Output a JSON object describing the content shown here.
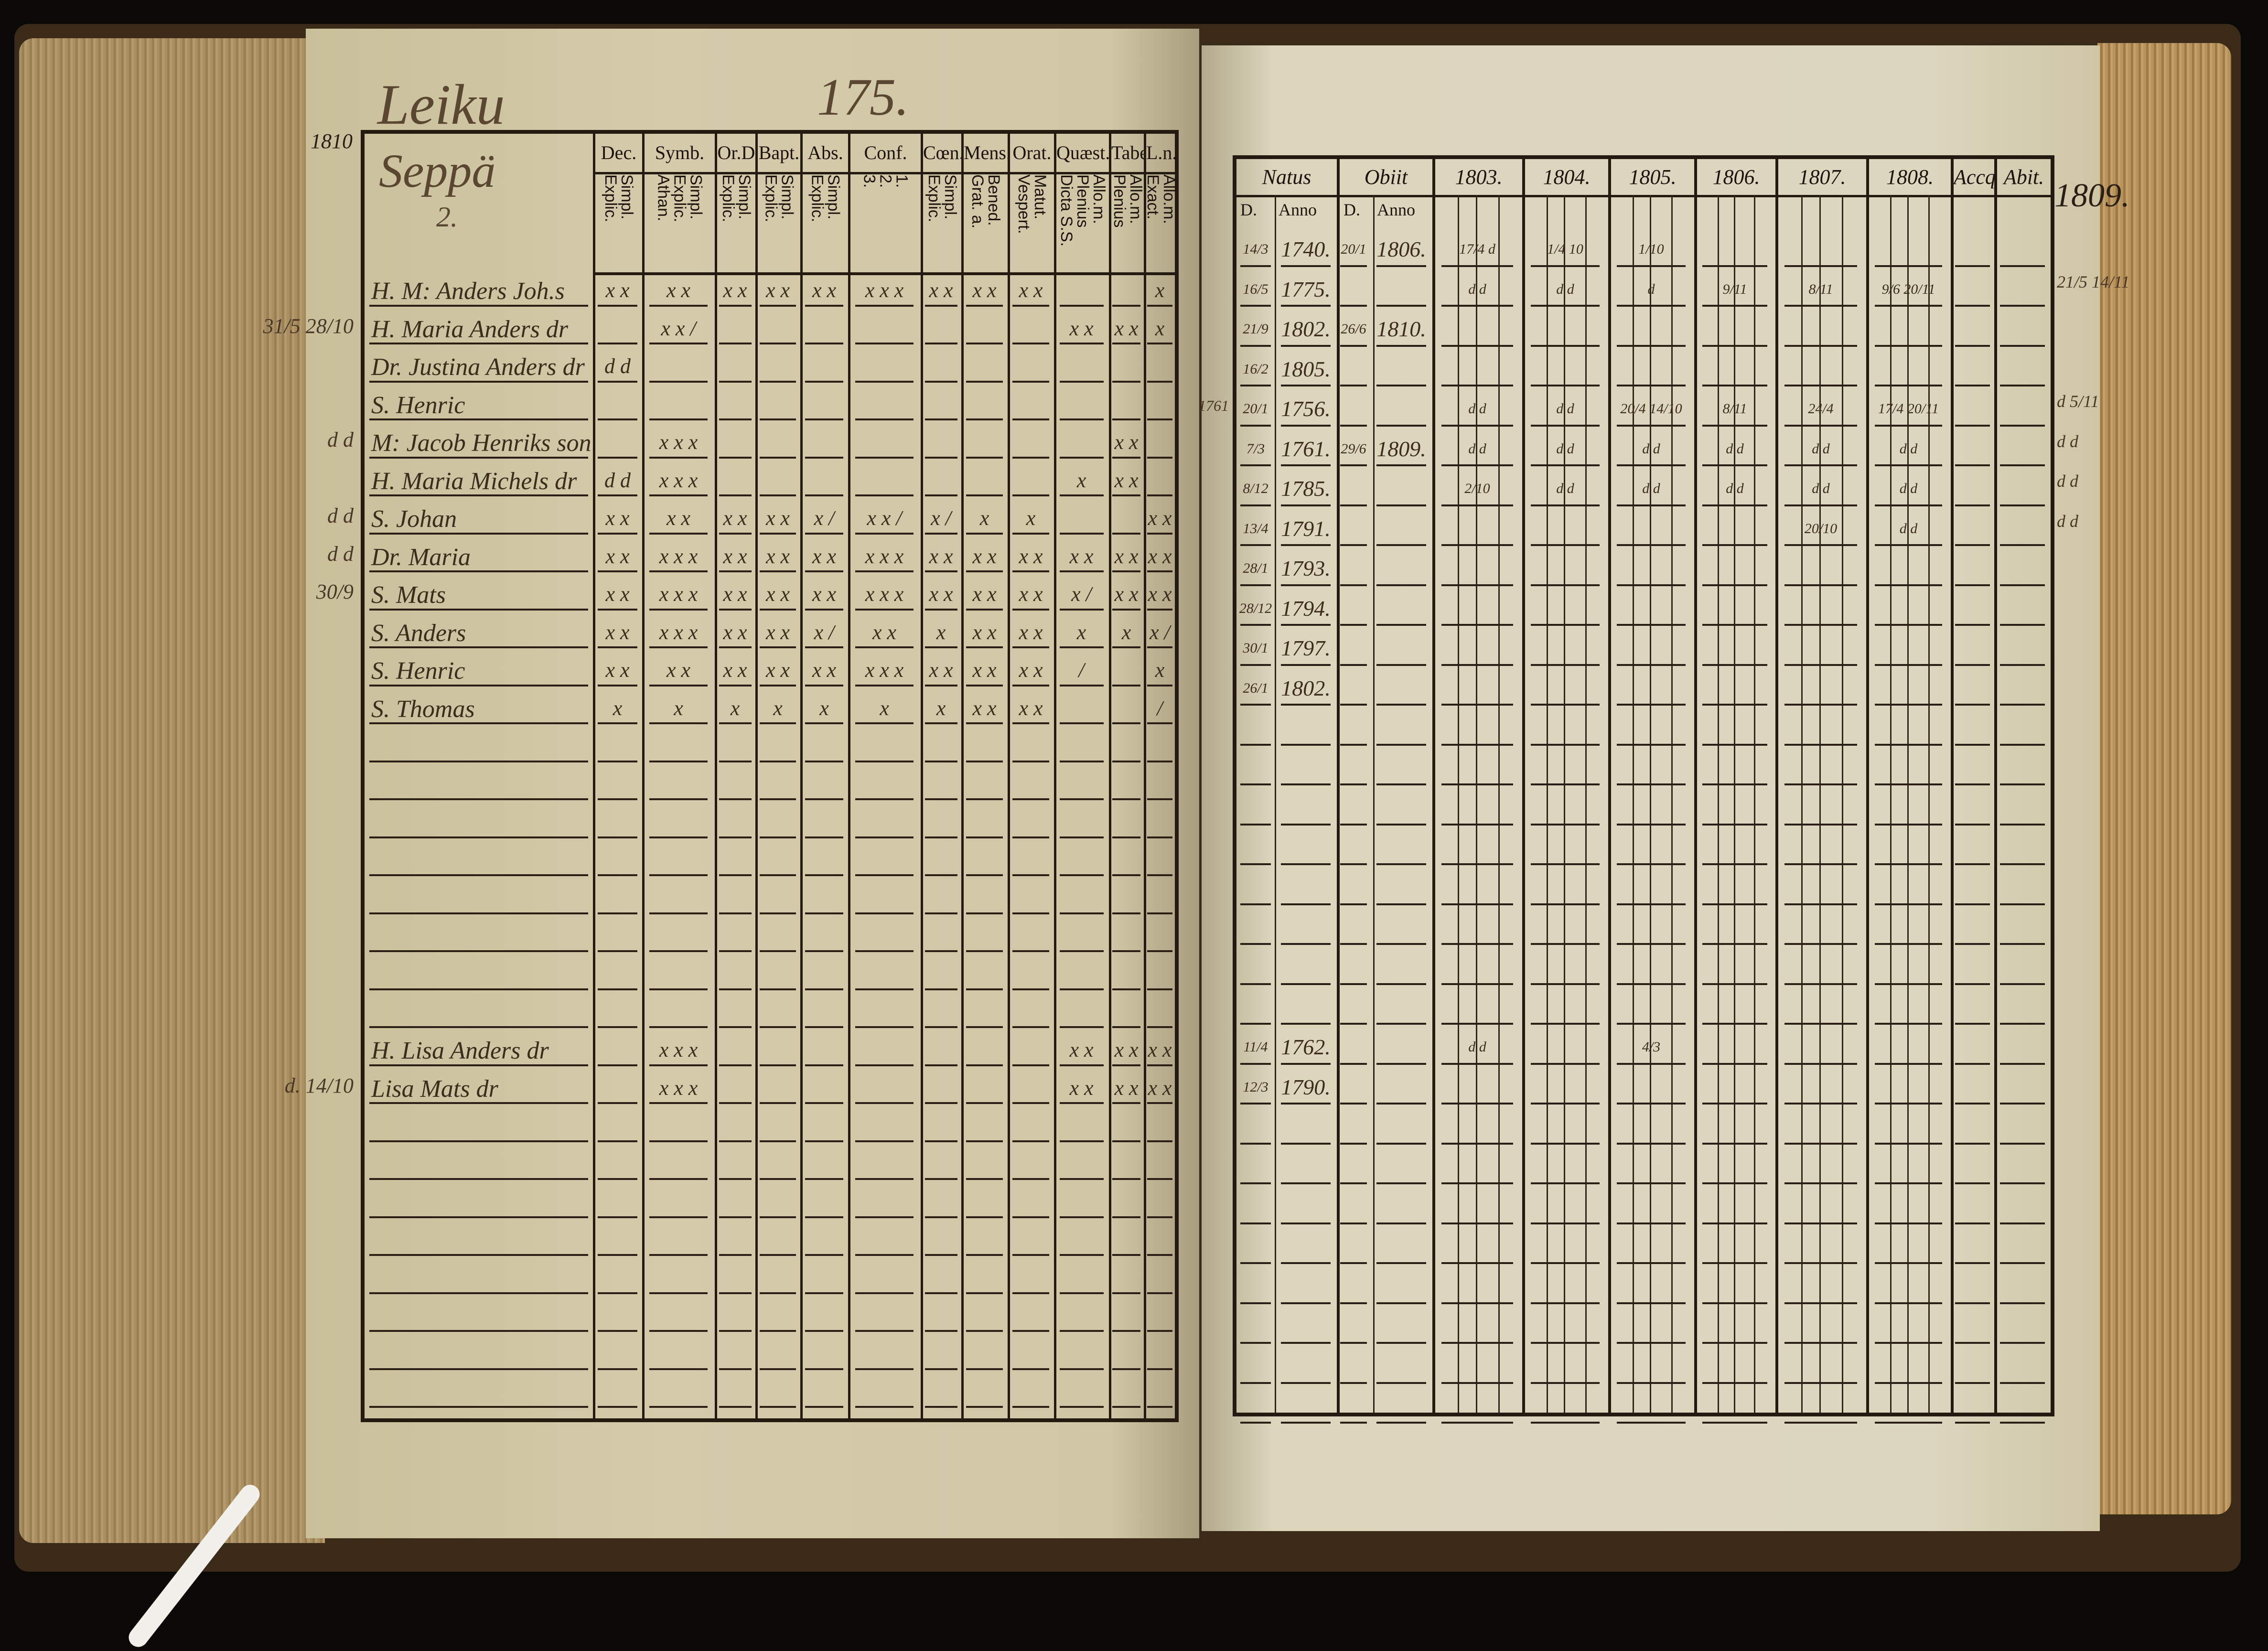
{
  "left_page": {
    "page_number": "175.",
    "title": "Leiku",
    "year_note": "1810",
    "farm": "Seppä",
    "farm_number": "2.",
    "columns": [
      {
        "label": "Dec.",
        "sub": [
          "Explic.",
          "Simpl."
        ]
      },
      {
        "label": "Symb.",
        "sub": [
          "Athan.",
          "Explic.",
          "Simpl."
        ]
      },
      {
        "label": "Or.D",
        "sub": [
          "Explic.",
          "Simpl."
        ]
      },
      {
        "label": "Bapt.",
        "sub": [
          "Explic.",
          "Simpl."
        ]
      },
      {
        "label": "Abs.",
        "sub": [
          "Explic.",
          "Simpl."
        ]
      },
      {
        "label": "Conf.",
        "sub": [
          "3.",
          "2.",
          "1."
        ]
      },
      {
        "label": "Cœn.D",
        "sub": [
          "Explic.",
          "Simpl."
        ]
      },
      {
        "label": "Mens.",
        "sub": [
          "Grat. a.",
          "Bened."
        ]
      },
      {
        "label": "Orat.",
        "sub": [
          "Vespert.",
          "Matut."
        ]
      },
      {
        "label": "Quæst.",
        "sub": [
          "Dicta S.S.",
          "Plenius",
          "Allo.m."
        ]
      },
      {
        "label": "Tabel.",
        "sub": [
          "Plenius",
          "Allo.m."
        ]
      },
      {
        "label": "L.n.",
        "sub": [
          "Exact.",
          "Allo.m."
        ]
      }
    ],
    "rows": [
      {
        "name": "H. M: Anders Joh.s",
        "margin": "",
        "marks": [
          "x x",
          "x x",
          "x x",
          "x x",
          "x x",
          "x x x",
          "x x",
          "x x",
          "x x",
          "",
          "",
          "x"
        ]
      },
      {
        "name": "H. Maria Anders dr",
        "margin": "31/5  28/10",
        "marks": [
          "",
          "x x /",
          "",
          "",
          "",
          "",
          "",
          "",
          "",
          "x x",
          "x x",
          "x"
        ]
      },
      {
        "name": "Dr. Justina Anders dr",
        "margin": "",
        "marks": [
          "d d",
          "",
          "",
          "",
          "",
          "",
          "",
          "",
          "",
          "",
          "",
          ""
        ]
      },
      {
        "name": "S. Henric",
        "margin": "",
        "marks": [
          "",
          "",
          "",
          "",
          "",
          "",
          "",
          "",
          "",
          "",
          "",
          ""
        ]
      },
      {
        "name": "M: Jacob Henriks son",
        "margin": "d  d",
        "marks": [
          "",
          "x x x",
          "",
          "",
          "",
          "",
          "",
          "",
          "",
          "",
          "x x",
          ""
        ]
      },
      {
        "name": "H. Maria Michels dr",
        "margin": "",
        "marks": [
          "d d",
          "x x x",
          "",
          "",
          "",
          "",
          "",
          "",
          "",
          "x",
          "x x",
          ""
        ]
      },
      {
        "name": "S. Johan",
        "margin": "d  d",
        "marks": [
          "x x",
          "x x",
          "x x",
          "x x",
          "x /",
          "x x /",
          "x /",
          "x",
          "x",
          "",
          "",
          "x x"
        ]
      },
      {
        "name": "Dr. Maria",
        "margin": "d  d",
        "marks": [
          "x x",
          "x x x",
          "x x",
          "x x",
          "x x",
          "x x x",
          "x x",
          "x x",
          "x x",
          "x x",
          "x x",
          "x x"
        ]
      },
      {
        "name": "S. Mats",
        "margin": "30/9",
        "marks": [
          "x x",
          "x x x",
          "x x",
          "x x",
          "x x",
          "x x x",
          "x x",
          "x x",
          "x x",
          "x /",
          "x x",
          "x x"
        ]
      },
      {
        "name": "S. Anders",
        "margin": "",
        "marks": [
          "x x",
          "x x x",
          "x x",
          "x x",
          "x /",
          "x x",
          "x",
          "x x",
          "x x",
          "x",
          "x",
          "x /"
        ]
      },
      {
        "name": "S. Henric",
        "margin": "",
        "marks": [
          "x x",
          "x x",
          "x x",
          "x x",
          "x x",
          "x x x",
          "x x",
          "x x",
          "x x",
          "/",
          "",
          "x"
        ]
      },
      {
        "name": "S. Thomas",
        "margin": "",
        "marks": [
          "x",
          "x",
          "x",
          "x",
          "x",
          "x",
          "x",
          "x x",
          "x x",
          "",
          "",
          "/"
        ]
      },
      {},
      {},
      {},
      {},
      {},
      {},
      {},
      {},
      {
        "name": "H. Lisa Anders dr",
        "margin": "",
        "marks": [
          "",
          "x x x",
          "",
          "",
          "",
          "",
          "",
          "",
          "",
          "x x",
          "x x",
          "x x"
        ]
      },
      {
        "name": "Lisa Mats dr",
        "margin": "d.  14/10",
        "marks": [
          "",
          "x x x",
          "",
          "",
          "",
          "",
          "",
          "",
          "",
          "x x",
          "x x",
          "x x"
        ]
      },
      {},
      {},
      {},
      {},
      {},
      {},
      {},
      {}
    ]
  },
  "right_page": {
    "margin_year": "1809.",
    "natus": {
      "label": "Natus",
      "sub": [
        "D.",
        "Anno"
      ]
    },
    "obiit": {
      "label": "Obiit",
      "sub": [
        "D.",
        "Anno"
      ]
    },
    "years": [
      "1803.",
      "1804.",
      "1805.",
      "1806.",
      "1807.",
      "1808."
    ],
    "accq": "Accq.",
    "abit": "Abit.",
    "rows": [
      {
        "natus_d": "14/3",
        "natus_anno": "1740.",
        "obiit_d": "20/1",
        "obiit_anno": "1806.",
        "years": [
          "17/4 d",
          "1/4 10",
          "1/10",
          "",
          "",
          ""
        ]
      },
      {
        "natus_d": "16/5",
        "natus_anno": "1775.",
        "obiit_d": "",
        "obiit_anno": "",
        "years": [
          "d d",
          "d d",
          "d",
          "9/11",
          "8/11",
          "9/6 20/11"
        ]
      },
      {
        "natus_d": "21/9",
        "natus_anno": "1802.",
        "obiit_d": "26/6",
        "obiit_anno": "1810.",
        "years": [
          "",
          "",
          "",
          "",
          "",
          ""
        ]
      },
      {
        "natus_d": "16/2",
        "natus_anno": "1805.",
        "obiit_d": "",
        "obiit_anno": "",
        "years": [
          "",
          "",
          "",
          "",
          "",
          ""
        ]
      },
      {
        "natus_d": "20/1",
        "natus_anno": "1756.",
        "natus_note": "1761",
        "obiit_d": "",
        "obiit_anno": "",
        "years": [
          "d d",
          "d d",
          "20/4 14/10",
          "8/11",
          "24/4",
          "17/4 20/11"
        ]
      },
      {
        "natus_d": "7/3",
        "natus_anno": "1761.",
        "obiit_d": "29/6",
        "obiit_anno": "1809.",
        "years": [
          "d d",
          "d d",
          "d d",
          "d d",
          "d d",
          "d d"
        ]
      },
      {
        "natus_d": "8/12",
        "natus_anno": "1785.",
        "obiit_d": "",
        "obiit_anno": "",
        "years": [
          "2/10",
          "d d",
          "d d",
          "d d",
          "d d",
          "d d"
        ]
      },
      {
        "natus_d": "13/4",
        "natus_anno": "1791.",
        "obiit_d": "",
        "obiit_anno": "",
        "years": [
          "",
          "",
          "",
          "",
          "20/10",
          "d d"
        ]
      },
      {
        "natus_d": "28/1",
        "natus_anno": "1793.",
        "obiit_d": "",
        "obiit_anno": "",
        "years": [
          "",
          "",
          "",
          "",
          "",
          ""
        ]
      },
      {
        "natus_d": "28/12",
        "natus_anno": "1794.",
        "obiit_d": "",
        "obiit_anno": "",
        "years": [
          "",
          "",
          "",
          "",
          "",
          ""
        ]
      },
      {
        "natus_d": "30/1",
        "natus_anno": "1797.",
        "obiit_d": "",
        "obiit_anno": "",
        "years": [
          "",
          "",
          "",
          "",
          "",
          ""
        ]
      },
      {
        "natus_d": "26/1",
        "natus_anno": "1802.",
        "obiit_d": "",
        "obiit_anno": "",
        "years": [
          "",
          "",
          "",
          "",
          "",
          ""
        ]
      },
      {},
      {},
      {},
      {},
      {},
      {},
      {},
      {},
      {
        "natus_d": "11/4",
        "natus_anno": "1762.",
        "obiit_d": "",
        "obiit_anno": "",
        "years": [
          "d d",
          "",
          "4/3",
          "",
          "",
          ""
        ]
      },
      {
        "natus_d": "12/3",
        "natus_anno": "1790.",
        "obiit_d": "",
        "obiit_anno": "",
        "years": [
          "",
          "",
          "",
          "",
          "",
          ""
        ]
      },
      {},
      {},
      {},
      {},
      {},
      {},
      {},
      {}
    ],
    "margin_notes": [
      "21/5  14/11",
      "d  5/11",
      "d  d",
      "d  d",
      "d  d"
    ]
  },
  "colors": {
    "paper": "#d8d1b4",
    "ink": "#231a10",
    "handwriting": "#5b4631",
    "background": "#0b0908",
    "edge": "#a98f62"
  }
}
